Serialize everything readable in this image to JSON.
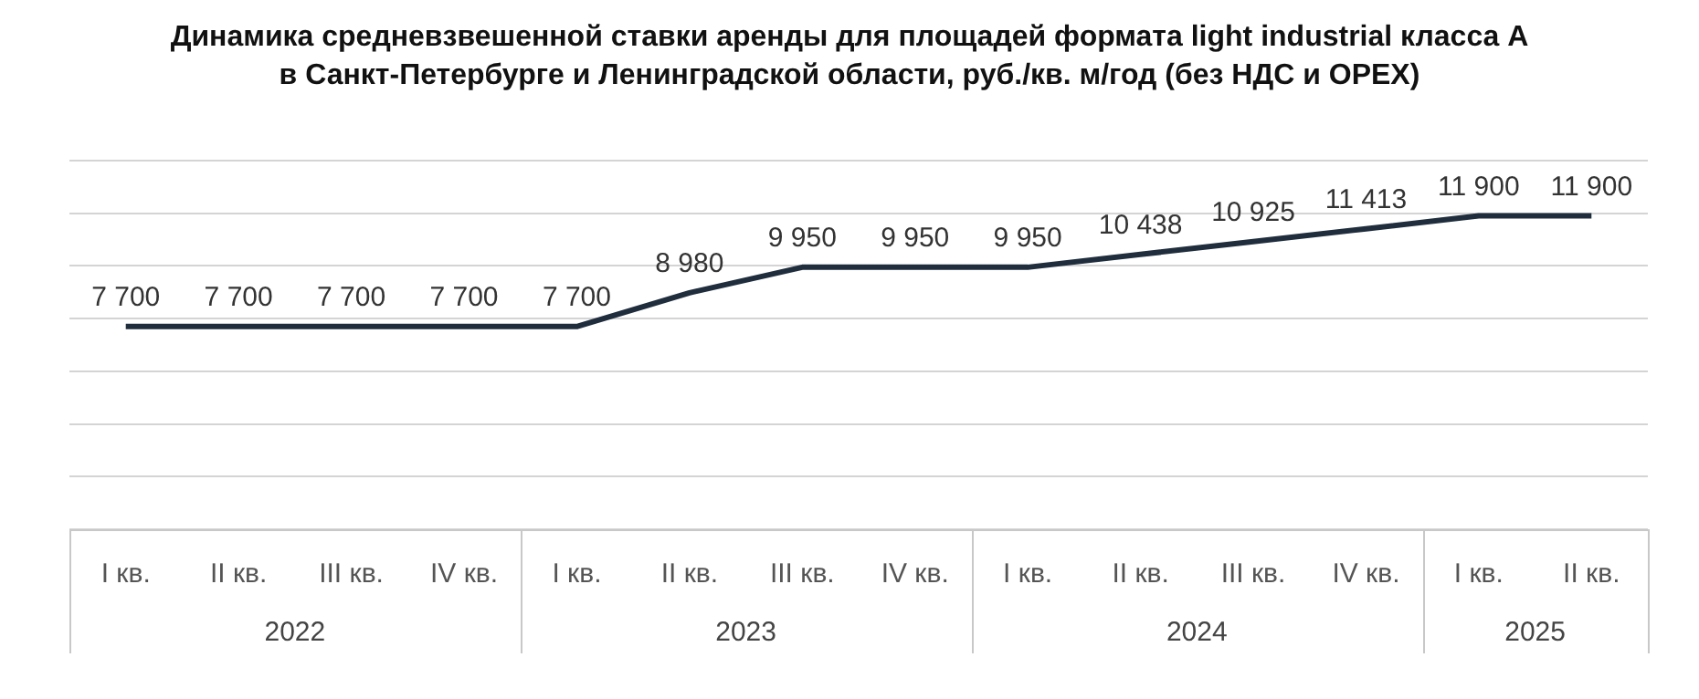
{
  "chart_data": {
    "type": "line",
    "title": "Динамика средневзвешенной ставки аренды для площадей формата light industrial класса А\nв Санкт-Петербурге и Ленинградской области, руб./кв. м/год (без НДС и OPEX)",
    "categories": [
      "I кв.",
      "II кв.",
      "III кв.",
      "IV кв.",
      "I кв.",
      "II кв.",
      "III кв.",
      "IV кв.",
      "I кв.",
      "II кв.",
      "III кв.",
      "IV кв.",
      "I кв.",
      "II кв."
    ],
    "series": [
      {
        "color": "#1f2d3d",
        "values": [
          7700,
          7700,
          7700,
          7700,
          7700,
          8980,
          9950,
          9950,
          9950,
          10438,
          10925,
          11413,
          11900,
          11900
        ]
      }
    ],
    "data_labels": true,
    "annotations": [
      "2022",
      "2023",
      "2024",
      "2025"
    ],
    "ylim": [
      0,
      14000
    ],
    "yticks": [
      {
        "value": 0,
        "label": null
      },
      {
        "value": 2000,
        "label": null
      },
      {
        "value": 4000,
        "label": null
      },
      {
        "value": 6000,
        "label": null
      },
      {
        "value": 8000,
        "label": null
      },
      {
        "value": 10000,
        "label": null
      },
      {
        "value": 12000,
        "label": null
      },
      {
        "value": 14000,
        "label": null
      }
    ],
    "tick_labels": "x",
    "grid": "y",
    "legend": false,
    "marker": "none",
    "line_style": "solid"
  }
}
